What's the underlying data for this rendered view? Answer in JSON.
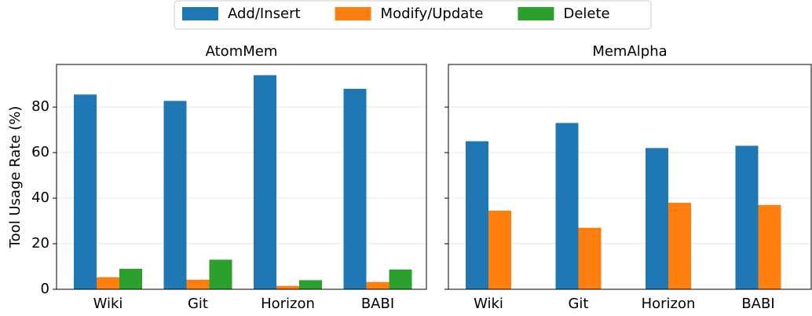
{
  "chart_data": [
    {
      "type": "bar",
      "title": "AtomMem",
      "y_label": "Tool Usage Rate (%)",
      "categories": [
        "Wiki",
        "Git",
        "Horizon",
        "BABI"
      ],
      "series": [
        {
          "name": "Add/Insert",
          "color": "#1f77b4",
          "values": [
            85.5,
            82.7,
            94,
            88
          ]
        },
        {
          "name": "Modify/Update",
          "color": "#ff7f0e",
          "values": [
            5.3,
            4.2,
            1.5,
            3.2
          ]
        },
        {
          "name": "Delete",
          "color": "#2ca02c",
          "values": [
            9,
            13,
            4,
            8.7
          ]
        }
      ],
      "ylim": [
        0,
        98.7
      ],
      "yticks": [
        0,
        20,
        40,
        60,
        80
      ],
      "grid": true
    },
    {
      "type": "bar",
      "title": "MemAlpha",
      "categories": [
        "Wiki",
        "Git",
        "Horizon",
        "BABI"
      ],
      "series": [
        {
          "name": "Add/Insert",
          "color": "#1f77b4",
          "values": [
            65,
            73,
            62,
            63
          ]
        },
        {
          "name": "Modify/Update",
          "color": "#ff7f0e",
          "values": [
            34.5,
            27,
            38,
            37
          ]
        }
      ],
      "ylim": [
        0,
        98.7
      ],
      "yticks": [
        0,
        20,
        40,
        60,
        80
      ],
      "grid": true
    }
  ]
}
